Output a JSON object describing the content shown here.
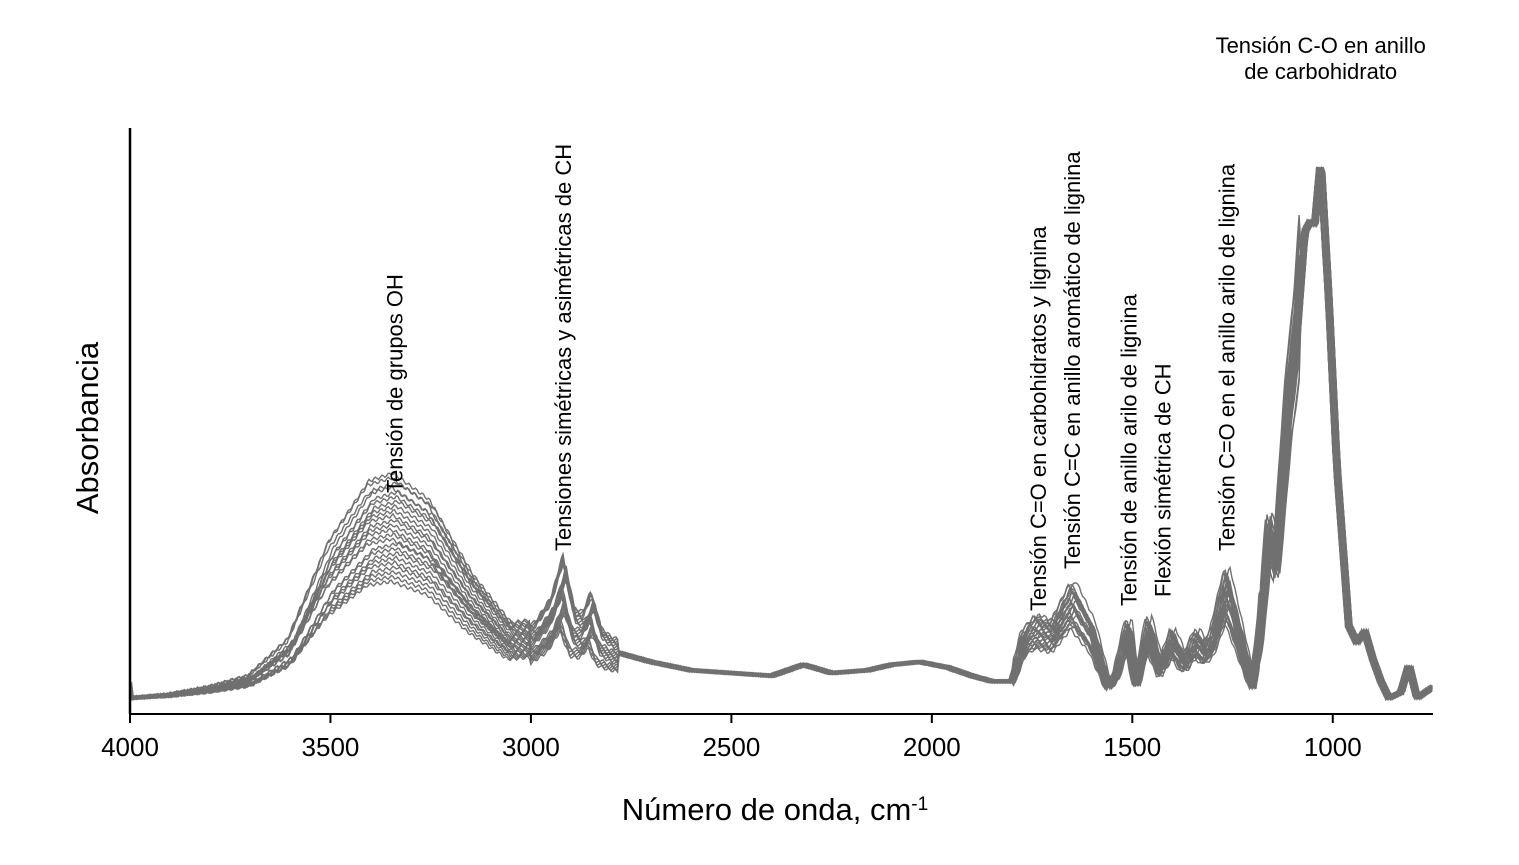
{
  "chart_data": {
    "type": "line",
    "title": "",
    "xlabel": "Número de onda, cm",
    "xlabel_sup": "-1",
    "ylabel": "Absorbancia",
    "xlim": [
      4000,
      750
    ],
    "x_reversed": true,
    "ylim": [
      0,
      1
    ],
    "y_ticks_shown": false,
    "grid": false,
    "legend": "none",
    "line_color": "#707070",
    "x_ticks": [
      4000,
      3500,
      3000,
      2500,
      2000,
      1500,
      1000
    ],
    "tick_labels": [
      "4000",
      "3500",
      "3000",
      "2500",
      "2000",
      "1500",
      "1000"
    ],
    "series_count": 24,
    "reference_spectrum": {
      "x": [
        4000,
        3900,
        3800,
        3700,
        3600,
        3500,
        3400,
        3340,
        3250,
        3150,
        3050,
        2990,
        2950,
        2920,
        2895,
        2870,
        2850,
        2830,
        2800,
        2700,
        2600,
        2500,
        2400,
        2320,
        2250,
        2160,
        2100,
        2030,
        1960,
        1900,
        1850,
        1800,
        1770,
        1740,
        1700,
        1650,
        1600,
        1560,
        1540,
        1510,
        1490,
        1460,
        1430,
        1400,
        1370,
        1340,
        1320,
        1300,
        1265,
        1230,
        1200,
        1180,
        1160,
        1140,
        1110,
        1090,
        1070,
        1055,
        1045,
        1030,
        1010,
        990,
        960,
        940,
        920,
        900,
        880,
        860,
        830,
        810,
        790,
        770,
        750
      ],
      "y": [
        0.0,
        0.005,
        0.015,
        0.03,
        0.08,
        0.21,
        0.29,
        0.3,
        0.265,
        0.17,
        0.1,
        0.105,
        0.14,
        0.2,
        0.125,
        0.12,
        0.15,
        0.1,
        0.085,
        0.065,
        0.05,
        0.045,
        0.04,
        0.06,
        0.045,
        0.05,
        0.06,
        0.065,
        0.055,
        0.04,
        0.03,
        0.03,
        0.1,
        0.12,
        0.11,
        0.17,
        0.11,
        0.02,
        0.04,
        0.12,
        0.02,
        0.12,
        0.05,
        0.1,
        0.06,
        0.1,
        0.08,
        0.1,
        0.19,
        0.1,
        0.02,
        0.12,
        0.29,
        0.25,
        0.53,
        0.65,
        0.84,
        0.86,
        0.85,
        0.97,
        0.72,
        0.42,
        0.13,
        0.1,
        0.12,
        0.07,
        0.03,
        0.0,
        0.01,
        0.06,
        0.0,
        0.01,
        0.02
      ]
    },
    "annotations": [
      {
        "x": 3340,
        "lines": [
          "Tensión de grupos OH"
        ],
        "vertical": true
      },
      {
        "x": 2920,
        "lines": [
          "Tensiones simétricas y asimétricas de CH"
        ],
        "vertical": true
      },
      {
        "x": 1735,
        "lines": [
          "Tensión C=O en carbohidratos y lignina"
        ],
        "vertical": true
      },
      {
        "x": 1650,
        "lines": [
          "Tensión C=C en anillo aromático de lignina"
        ],
        "vertical": true
      },
      {
        "x": 1510,
        "lines": [
          "Tensión de anillo arilo de lignina"
        ],
        "vertical": true
      },
      {
        "x": 1425,
        "lines": [
          "Flexión simétrica de CH"
        ],
        "vertical": true
      },
      {
        "x": 1265,
        "lines": [
          "Tensión C=O en el anillo arilo de lignina"
        ],
        "vertical": true
      },
      {
        "x": 1030,
        "lines": [
          "Tensión C-O en anillo",
          "de carbohidrato"
        ],
        "vertical": false
      }
    ]
  }
}
